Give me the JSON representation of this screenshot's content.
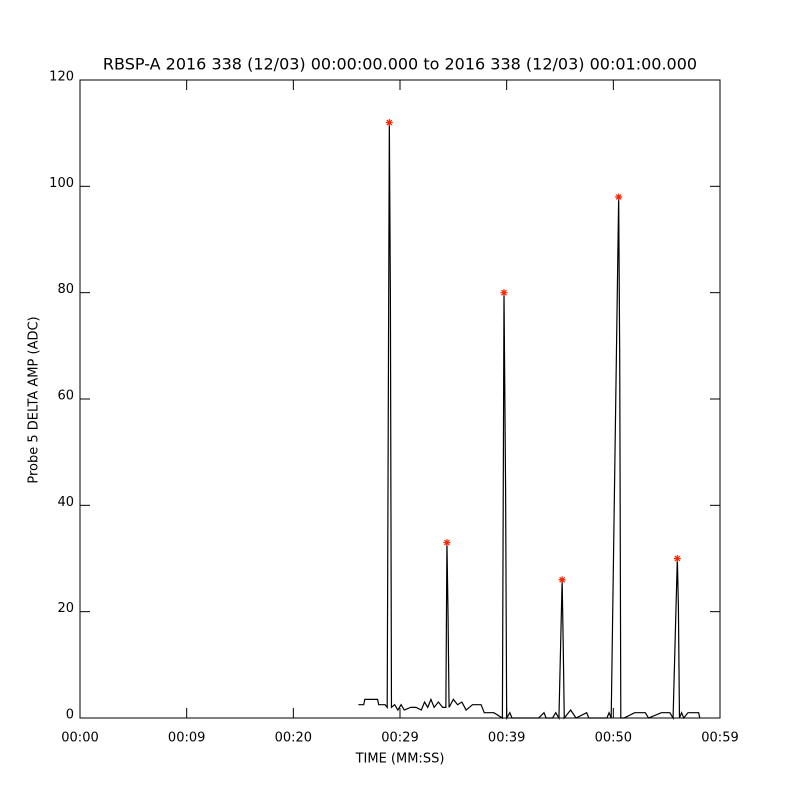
{
  "chart_data": {
    "type": "line",
    "title": "RBSP-A 2016 338 (12/03) 00:00:00.000 to 2016 338 (12/03) 00:01:00.000",
    "x_label": "TIME (MM:SS)",
    "y_label": "Probe 5 DELTA AMP (ADC)",
    "xlim": [
      0,
      60
    ],
    "ylim": [
      0,
      120
    ],
    "xticks": [
      {
        "value": 0,
        "label": "00:00"
      },
      {
        "value": 10,
        "label": "00:09"
      },
      {
        "value": 20,
        "label": "00:20"
      },
      {
        "value": 30,
        "label": "00:29"
      },
      {
        "value": 40,
        "label": "00:39"
      },
      {
        "value": 50,
        "label": "00:50"
      },
      {
        "value": 60,
        "label": "00:59"
      }
    ],
    "yticks": [
      0,
      20,
      40,
      60,
      80,
      100,
      120
    ],
    "series": [
      {
        "color": "#000000",
        "marker": "none",
        "x": [
          26.1,
          26.6,
          26.7,
          27.9,
          28.0,
          28.6,
          28.8,
          29.0,
          29.1,
          29.2,
          29.5,
          29.8,
          30.1,
          30.4,
          31.0,
          31.5,
          32.0,
          32.3,
          32.6,
          32.9,
          33.2,
          33.6,
          34.0,
          34.3,
          34.4,
          34.5,
          34.6,
          35.0,
          35.4,
          35.8,
          36.2,
          36.8,
          37.6,
          37.9,
          38.8,
          39.6,
          39.75,
          39.9,
          40.0,
          40.3,
          40.5,
          43.0,
          43.5,
          43.7,
          44.3,
          44.6,
          44.9,
          45.2,
          45.3,
          45.4,
          46.0,
          46.5,
          47.5,
          47.7,
          49.4,
          49.6,
          49.8,
          50.5,
          50.6,
          50.7,
          51.0,
          52.0,
          53.0,
          53.3,
          54.5,
          55.3,
          55.6,
          56.0,
          56.1,
          56.2,
          56.4,
          56.6,
          57.0,
          58.0,
          58.1
        ],
        "values": [
          2.5,
          2.5,
          3.5,
          3.5,
          2.5,
          2.5,
          2,
          112,
          79,
          2,
          2.5,
          1.5,
          2.5,
          1.5,
          2,
          2,
          1.5,
          3,
          2,
          3.5,
          2,
          3,
          2,
          2,
          33,
          20,
          2,
          3.5,
          2.5,
          3,
          1.5,
          2.5,
          2.5,
          1,
          1,
          0,
          80,
          43,
          0,
          1,
          0,
          0,
          1,
          0,
          0,
          1,
          0,
          26,
          14,
          0,
          1.5,
          0,
          1,
          0,
          0,
          1,
          0,
          98,
          67,
          0,
          0,
          1,
          1,
          0,
          1,
          1,
          0,
          30,
          21,
          0,
          1,
          0,
          1,
          1,
          0
        ]
      },
      {
        "color": "#ff2200",
        "marker": "asterisk",
        "x": [
          29.0,
          34.4,
          39.75,
          45.2,
          50.5,
          56.0
        ],
        "values": [
          112,
          33,
          80,
          26,
          98,
          30
        ]
      }
    ]
  }
}
